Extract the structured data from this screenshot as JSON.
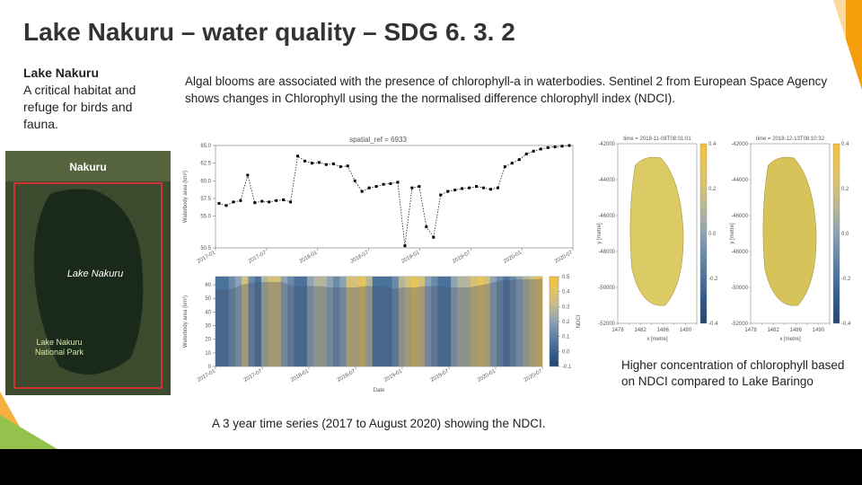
{
  "title": "Lake Nakuru – water quality – SDG 6. 3. 2",
  "sidebar": {
    "heading": "Lake Nakuru",
    "body": "A critical habitat and refuge for birds and fauna."
  },
  "description": "Algal blooms are associated with the presence of chlorophyll-a in waterbodies. Sentinel 2 from European Space Agency shows changes in Chlorophyll using the the normalised difference chlorophyll index (NDCI).",
  "caption_bottom": "A 3 year time series (2017 to August 2020) showing the NDCI.",
  "caption_right": "Higher concentration of chlorophyll based on NDCI compared to Lake Baringo",
  "sat_image": {
    "labels": [
      "Nakuru",
      "Lake Nakuru",
      "Lake Nakuru National Park"
    ],
    "land_color": "#3d4a2e",
    "lake_color": "#1a2a1a",
    "border_color": "#cc3333"
  },
  "top_chart": {
    "type": "line",
    "title": "spatial_ref = 6933",
    "title_fontsize": 8,
    "ylabel": "Waterbody area (km²)",
    "xlabel": "Date",
    "xticks": [
      "2017-01",
      "2017-07",
      "2018-01",
      "2018-07",
      "2019-01",
      "2019-07",
      "2020-01",
      "2020-07"
    ],
    "yticks": [
      50.5,
      55.0,
      57.5,
      60.0,
      62.5,
      65.0
    ],
    "ylim": [
      50.5,
      65.0
    ],
    "background_color": "#ffffff",
    "line_color": "#000000",
    "marker": "square",
    "marker_size": 3,
    "line_style": "dotted",
    "data": [
      [
        0.01,
        56.8
      ],
      [
        0.03,
        56.5
      ],
      [
        0.05,
        57.0
      ],
      [
        0.07,
        57.2
      ],
      [
        0.09,
        60.8
      ],
      [
        0.11,
        56.9
      ],
      [
        0.13,
        57.1
      ],
      [
        0.15,
        57.0
      ],
      [
        0.17,
        57.2
      ],
      [
        0.19,
        57.3
      ],
      [
        0.21,
        57.0
      ],
      [
        0.23,
        63.5
      ],
      [
        0.25,
        62.8
      ],
      [
        0.27,
        62.5
      ],
      [
        0.29,
        62.6
      ],
      [
        0.31,
        62.3
      ],
      [
        0.33,
        62.4
      ],
      [
        0.35,
        62.0
      ],
      [
        0.37,
        62.1
      ],
      [
        0.39,
        60.0
      ],
      [
        0.41,
        58.5
      ],
      [
        0.43,
        59.0
      ],
      [
        0.45,
        59.2
      ],
      [
        0.47,
        59.5
      ],
      [
        0.49,
        59.6
      ],
      [
        0.51,
        59.8
      ],
      [
        0.53,
        50.8
      ],
      [
        0.55,
        59.0
      ],
      [
        0.57,
        59.2
      ],
      [
        0.59,
        53.5
      ],
      [
        0.61,
        52.0
      ],
      [
        0.63,
        58.0
      ],
      [
        0.65,
        58.5
      ],
      [
        0.67,
        58.7
      ],
      [
        0.69,
        58.9
      ],
      [
        0.71,
        59.0
      ],
      [
        0.73,
        59.2
      ],
      [
        0.75,
        59.0
      ],
      [
        0.77,
        58.8
      ],
      [
        0.79,
        59.0
      ],
      [
        0.81,
        62.0
      ],
      [
        0.83,
        62.5
      ],
      [
        0.85,
        63.0
      ],
      [
        0.87,
        63.8
      ],
      [
        0.89,
        64.2
      ],
      [
        0.91,
        64.5
      ],
      [
        0.93,
        64.7
      ],
      [
        0.95,
        64.8
      ],
      [
        0.97,
        64.9
      ],
      [
        0.99,
        65.0
      ]
    ]
  },
  "bot_chart": {
    "type": "area+heatstrip",
    "ylabel": "Waterbody area (km²)",
    "xlabel": "Date",
    "colorbar_label": "NDCI",
    "xticks": [
      "2017-01",
      "2017-07",
      "2018-01",
      "2018-07",
      "2019-01",
      "2019-07",
      "2020-01",
      "2020-07"
    ],
    "yticks": [
      0,
      10,
      20,
      30,
      40,
      50,
      60
    ],
    "cticks": [
      -0.1,
      0.0,
      0.1,
      0.2,
      0.3,
      0.4,
      0.5
    ],
    "ylim": [
      0,
      66
    ],
    "background_color": "#ffffff",
    "area_color": "rgba(70,80,110,0.35)",
    "strip_palette": [
      "#26456e",
      "#2f5a87",
      "#4a729a",
      "#6b8aa8",
      "#8da2b3",
      "#b3b69a",
      "#d4c177",
      "#e8c559",
      "#f2c23e"
    ],
    "strip_values": [
      0.1,
      0.08,
      0.15,
      0.25,
      0.35,
      0.18,
      0.12,
      0.28,
      0.38,
      0.42,
      0.22,
      0.14,
      0.09,
      0.11,
      0.24,
      0.3,
      0.34,
      0.2,
      0.16,
      0.26,
      0.36,
      0.4,
      0.44,
      0.28,
      0.12,
      0.08,
      0.1,
      0.18,
      0.3,
      0.38,
      0.44,
      0.36,
      0.24,
      0.14,
      0.1,
      0.12,
      0.2,
      0.28,
      0.34,
      0.4,
      0.46,
      0.38,
      0.26,
      0.16,
      0.1,
      0.14,
      0.22,
      0.32,
      0.4,
      0.46
    ],
    "area_values": [
      56,
      56,
      57,
      58,
      60,
      61,
      62,
      62,
      62,
      62,
      62,
      60,
      59,
      59,
      59,
      59,
      59,
      58,
      58,
      58,
      58,
      58,
      59,
      59,
      59,
      59,
      58,
      57,
      58,
      58,
      58,
      59,
      59,
      59,
      59,
      58,
      58,
      58,
      58,
      59,
      60,
      61,
      62,
      63,
      63,
      64,
      64,
      64,
      64,
      65
    ]
  },
  "maps": {
    "left": {
      "title": "time = 2018-11-08T08:01:01",
      "title_fontsize": 6,
      "xlabel": "x [metre]",
      "ylabel": "y [metre]",
      "xticks": [
        1478,
        1480,
        1482,
        1484,
        1486,
        1488,
        1490,
        1494
      ],
      "yticks": [
        -42000,
        -44000,
        -46000,
        -48000,
        -50000,
        -52000
      ],
      "fill_color": "#dcca64",
      "cmap_ticks": [
        -0.4,
        -0.2,
        0.0,
        0.2,
        0.4
      ]
    },
    "right": {
      "title": "time = 2018-12-13T08:10:32",
      "title_fontsize": 6,
      "xlabel": "x [metre]",
      "ylabel": "y [metre]",
      "xticks": [
        1478,
        1480,
        1482,
        1484,
        1486,
        1488,
        1490,
        1494
      ],
      "yticks": [
        -42000,
        -44000,
        -46000,
        -48000,
        -50000,
        -52000
      ],
      "fill_color": "#d6c35a",
      "cmap_ticks": [
        -0.4,
        -0.2,
        0.0,
        0.2,
        0.4
      ]
    }
  },
  "colors": {
    "accent_orange": "#f59e0b",
    "accent_green": "#95c14d"
  }
}
